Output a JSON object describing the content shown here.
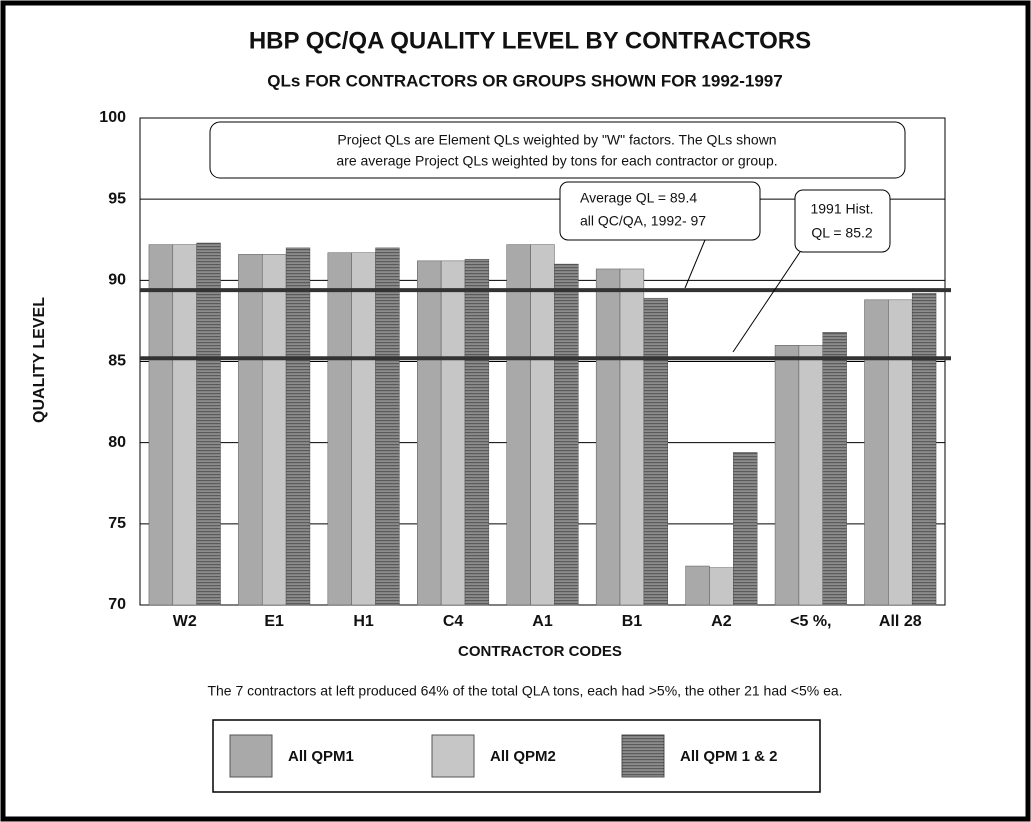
{
  "chart_data": {
    "type": "bar",
    "title": "HBP QC/QA QUALITY LEVEL BY CONTRACTORS",
    "subtitle": "QLs FOR CONTRACTORS OR GROUPS SHOWN FOR 1992-1997",
    "x_label": "CONTRACTOR CODES",
    "y_label": "QUALITY LEVEL",
    "categories": [
      "W2",
      "E1",
      "H1",
      "C4",
      "A1",
      "B1",
      "A2",
      "<5 %,",
      "All 28"
    ],
    "series": [
      {
        "name": "All QPM1",
        "color": "#a9a9a9",
        "values": [
          92.2,
          91.6,
          91.7,
          91.2,
          92.2,
          90.7,
          72.4,
          86.0,
          88.8
        ]
      },
      {
        "name": "All QPM2",
        "color": "#c6c6c6",
        "values": [
          92.2,
          91.6,
          91.7,
          91.2,
          92.2,
          90.7,
          72.3,
          86.0,
          88.8
        ]
      },
      {
        "name": "All QPM 1 & 2",
        "color": "#8c8c8c",
        "values": [
          92.3,
          92.0,
          92.0,
          91.3,
          91.0,
          88.9,
          79.4,
          86.8,
          89.2
        ]
      }
    ],
    "ylim": [
      70,
      100
    ],
    "yticks": [
      70,
      75,
      80,
      85,
      90,
      95,
      100
    ],
    "grid": true,
    "note": [
      "Project QLs are Element QLs weighted by \"W\" factors.  The QLs shown",
      "are average Project QLs weighted by tons for each contractor or group."
    ],
    "reference_lines": [
      {
        "value": 89.4,
        "label": [
          "Average QL = 89.4",
          "all QC/QA, 1992- 97"
        ]
      },
      {
        "value": 85.2,
        "label": [
          "1991 Hist.",
          "QL = 85.2"
        ]
      }
    ],
    "footnote": "The 7 contractors at left produced 64% of the total QLA tons, each had >5%, the other 21 had <5% ea."
  }
}
